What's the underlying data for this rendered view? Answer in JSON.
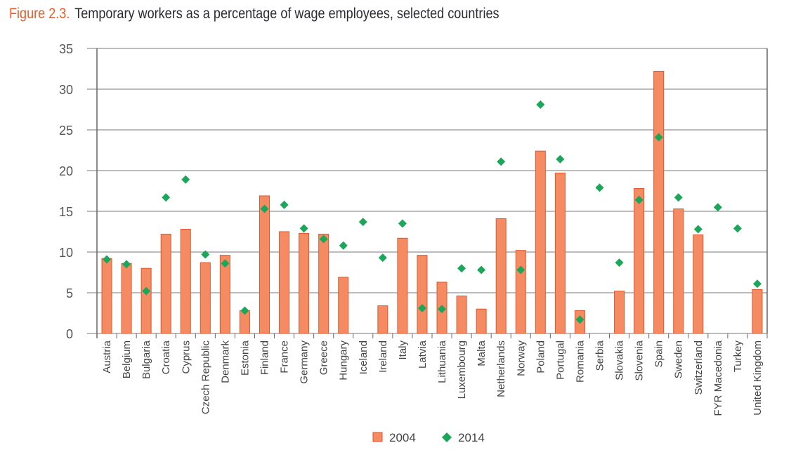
{
  "figure_label": "Figure 2.3.",
  "title": "Temporary workers as a percentage of wage employees, selected countries",
  "chart_data": {
    "type": "bar",
    "title": "Temporary workers as a percentage of wage employees, selected countries",
    "xlabel": "",
    "ylabel": "",
    "ylim": [
      0,
      35
    ],
    "yticks": [
      0,
      5,
      10,
      15,
      20,
      25,
      30,
      35
    ],
    "grid": true,
    "legend_position": "bottom",
    "categories": [
      "Austria",
      "Belgium",
      "Bulgaria",
      "Croatia",
      "Cyprus",
      "Czech Republic",
      "Denmark",
      "Estonia",
      "Finland",
      "France",
      "Germany",
      "Greece",
      "Hungary",
      "Iceland",
      "Ireland",
      "Italy",
      "Latvia",
      "Lithuania",
      "Luxembourg",
      "Malta",
      "Netherlands",
      "Norway",
      "Poland",
      "Portugal",
      "Romania",
      "Serbia",
      "Slovakia",
      "Slovenia",
      "Spain",
      "Sweden",
      "Switzerland",
      "FYR Macedonia",
      "Turkey",
      "United Kingdom"
    ],
    "series": [
      {
        "name": "2004",
        "type": "bar",
        "color": "#f58b63",
        "stroke": "#e2552a",
        "values": [
          9.2,
          8.6,
          8.0,
          12.2,
          12.8,
          8.7,
          9.6,
          2.8,
          16.9,
          12.5,
          12.3,
          12.2,
          6.9,
          null,
          3.4,
          11.7,
          9.6,
          6.3,
          4.6,
          3.0,
          14.1,
          10.2,
          22.4,
          19.7,
          2.8,
          null,
          5.2,
          17.8,
          32.2,
          15.3,
          12.1,
          null,
          null,
          5.4
        ]
      },
      {
        "name": "2014",
        "type": "marker",
        "marker": "diamond",
        "color": "#1aa75a",
        "values": [
          9.1,
          8.5,
          5.2,
          16.7,
          18.9,
          9.7,
          8.6,
          2.8,
          15.3,
          15.8,
          12.9,
          11.6,
          10.8,
          13.7,
          9.3,
          13.5,
          3.1,
          3.0,
          8.0,
          7.8,
          21.1,
          7.8,
          28.1,
          21.4,
          1.7,
          17.9,
          8.7,
          16.4,
          24.1,
          16.7,
          12.8,
          15.5,
          12.9,
          6.1
        ]
      }
    ]
  }
}
